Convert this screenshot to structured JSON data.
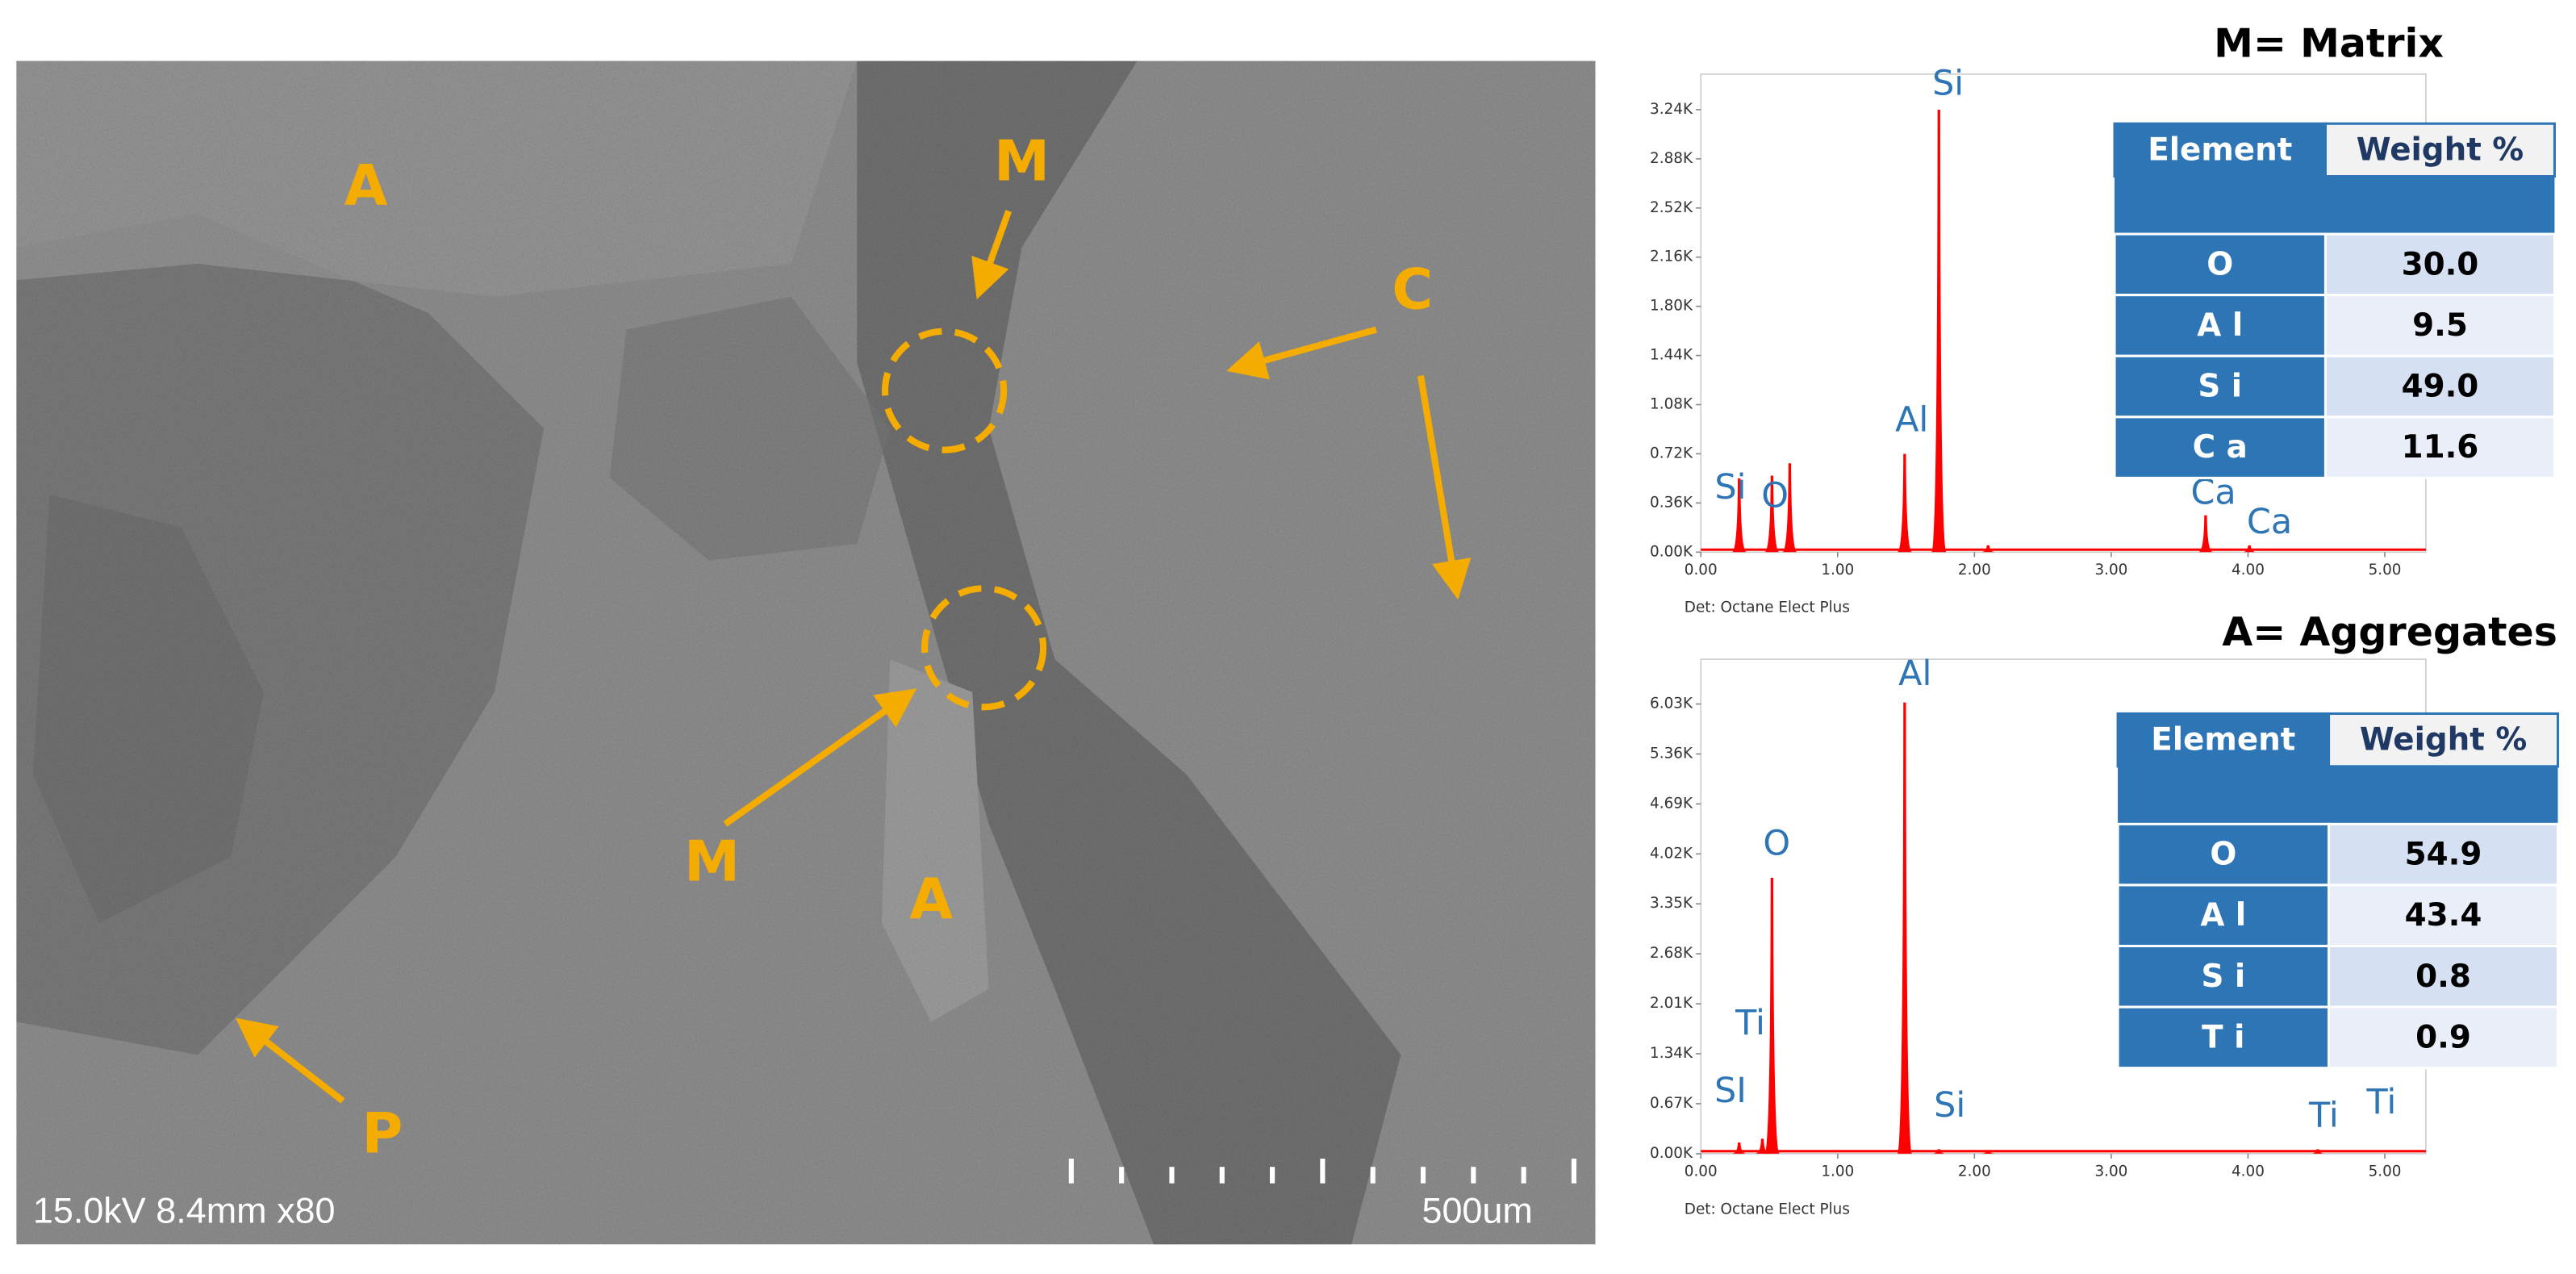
{
  "sem_image": {
    "labels": [
      "A",
      "M",
      "C",
      "M",
      "A",
      "P"
    ],
    "info": "15.0kV 8.4mm x80",
    "scale_bar": "500um"
  },
  "chart_data": [
    {
      "type": "spectrum",
      "title": "M= Matrix",
      "color": "#ff0000",
      "x": [
        0.28,
        0.52,
        0.65,
        1.49,
        1.74,
        2.1,
        3.69,
        4.01
      ],
      "values": [
        540,
        560,
        650,
        720,
        3240,
        50,
        270,
        50
      ],
      "xlim": [
        0,
        5.3
      ],
      "xticks": [
        {
          "value": 0,
          "label": "0.00"
        },
        {
          "value": 1,
          "label": "1.00"
        },
        {
          "value": 2,
          "label": "2.00"
        },
        {
          "value": 3,
          "label": "3.00"
        },
        {
          "value": 4,
          "label": "4.00"
        },
        {
          "value": 5,
          "label": "5.00"
        }
      ],
      "ylim": [
        0,
        3500
      ],
      "yticks": [
        {
          "value": 0,
          "label": "0.00K"
        },
        {
          "value": 360,
          "label": "0.36K"
        },
        {
          "value": 720,
          "label": "0.72K"
        },
        {
          "value": 1080,
          "label": "1.08K"
        },
        {
          "value": 1440,
          "label": "1.44K"
        },
        {
          "value": 1800,
          "label": "1.80K"
        },
        {
          "value": 2160,
          "label": "2.16K"
        },
        {
          "value": 2520,
          "label": "2.52K"
        },
        {
          "value": 2880,
          "label": "2.88K"
        },
        {
          "value": 3240,
          "label": "3.24K"
        }
      ],
      "annotations": [
        "Si",
        "O",
        "Al",
        "Si",
        "Ca",
        "Ca"
      ],
      "footnote": "Det: Octane Elect Plus",
      "table": {
        "header": [
          "Element",
          "Weight %"
        ],
        "rows": [
          [
            "O",
            "30.0"
          ],
          [
            "A l",
            "9.5"
          ],
          [
            "S i",
            "49.0"
          ],
          [
            "C a",
            "11.6"
          ]
        ]
      }
    },
    {
      "type": "spectrum",
      "title": "A= Aggregates",
      "color": "#ff0000",
      "x": [
        0.28,
        0.45,
        0.52,
        1.49,
        1.74,
        2.1,
        4.51
      ],
      "values": [
        150,
        200,
        3700,
        6050,
        60,
        40,
        60
      ],
      "xlim": [
        0,
        5.3
      ],
      "xticks": [
        {
          "value": 0,
          "label": "0.00"
        },
        {
          "value": 1,
          "label": "1.00"
        },
        {
          "value": 2,
          "label": "2.00"
        },
        {
          "value": 3,
          "label": "3.00"
        },
        {
          "value": 4,
          "label": "4.00"
        },
        {
          "value": 5,
          "label": "5.00"
        }
      ],
      "ylim": [
        0,
        6630
      ],
      "yticks": [
        {
          "value": 0,
          "label": "0.00K"
        },
        {
          "value": 670,
          "label": "0.67K"
        },
        {
          "value": 1340,
          "label": "1.34K"
        },
        {
          "value": 2010,
          "label": "2.01K"
        },
        {
          "value": 2680,
          "label": "2.68K"
        },
        {
          "value": 3350,
          "label": "3.35K"
        },
        {
          "value": 4020,
          "label": "4.02K"
        },
        {
          "value": 4690,
          "label": "4.69K"
        },
        {
          "value": 5360,
          "label": "5.36K"
        },
        {
          "value": 6030,
          "label": "6.03K"
        }
      ],
      "annotations": [
        "Ti",
        "SI",
        "O",
        "Al",
        "Si",
        "Ti",
        "Ti"
      ],
      "footnote": "Det: Octane Elect Plus",
      "table": {
        "header": [
          "Element",
          "Weight %"
        ],
        "rows": [
          [
            "O",
            "54.9"
          ],
          [
            "A l",
            "43.4"
          ],
          [
            "S i",
            "0.8"
          ],
          [
            "T i",
            "0.9"
          ]
        ]
      }
    }
  ]
}
